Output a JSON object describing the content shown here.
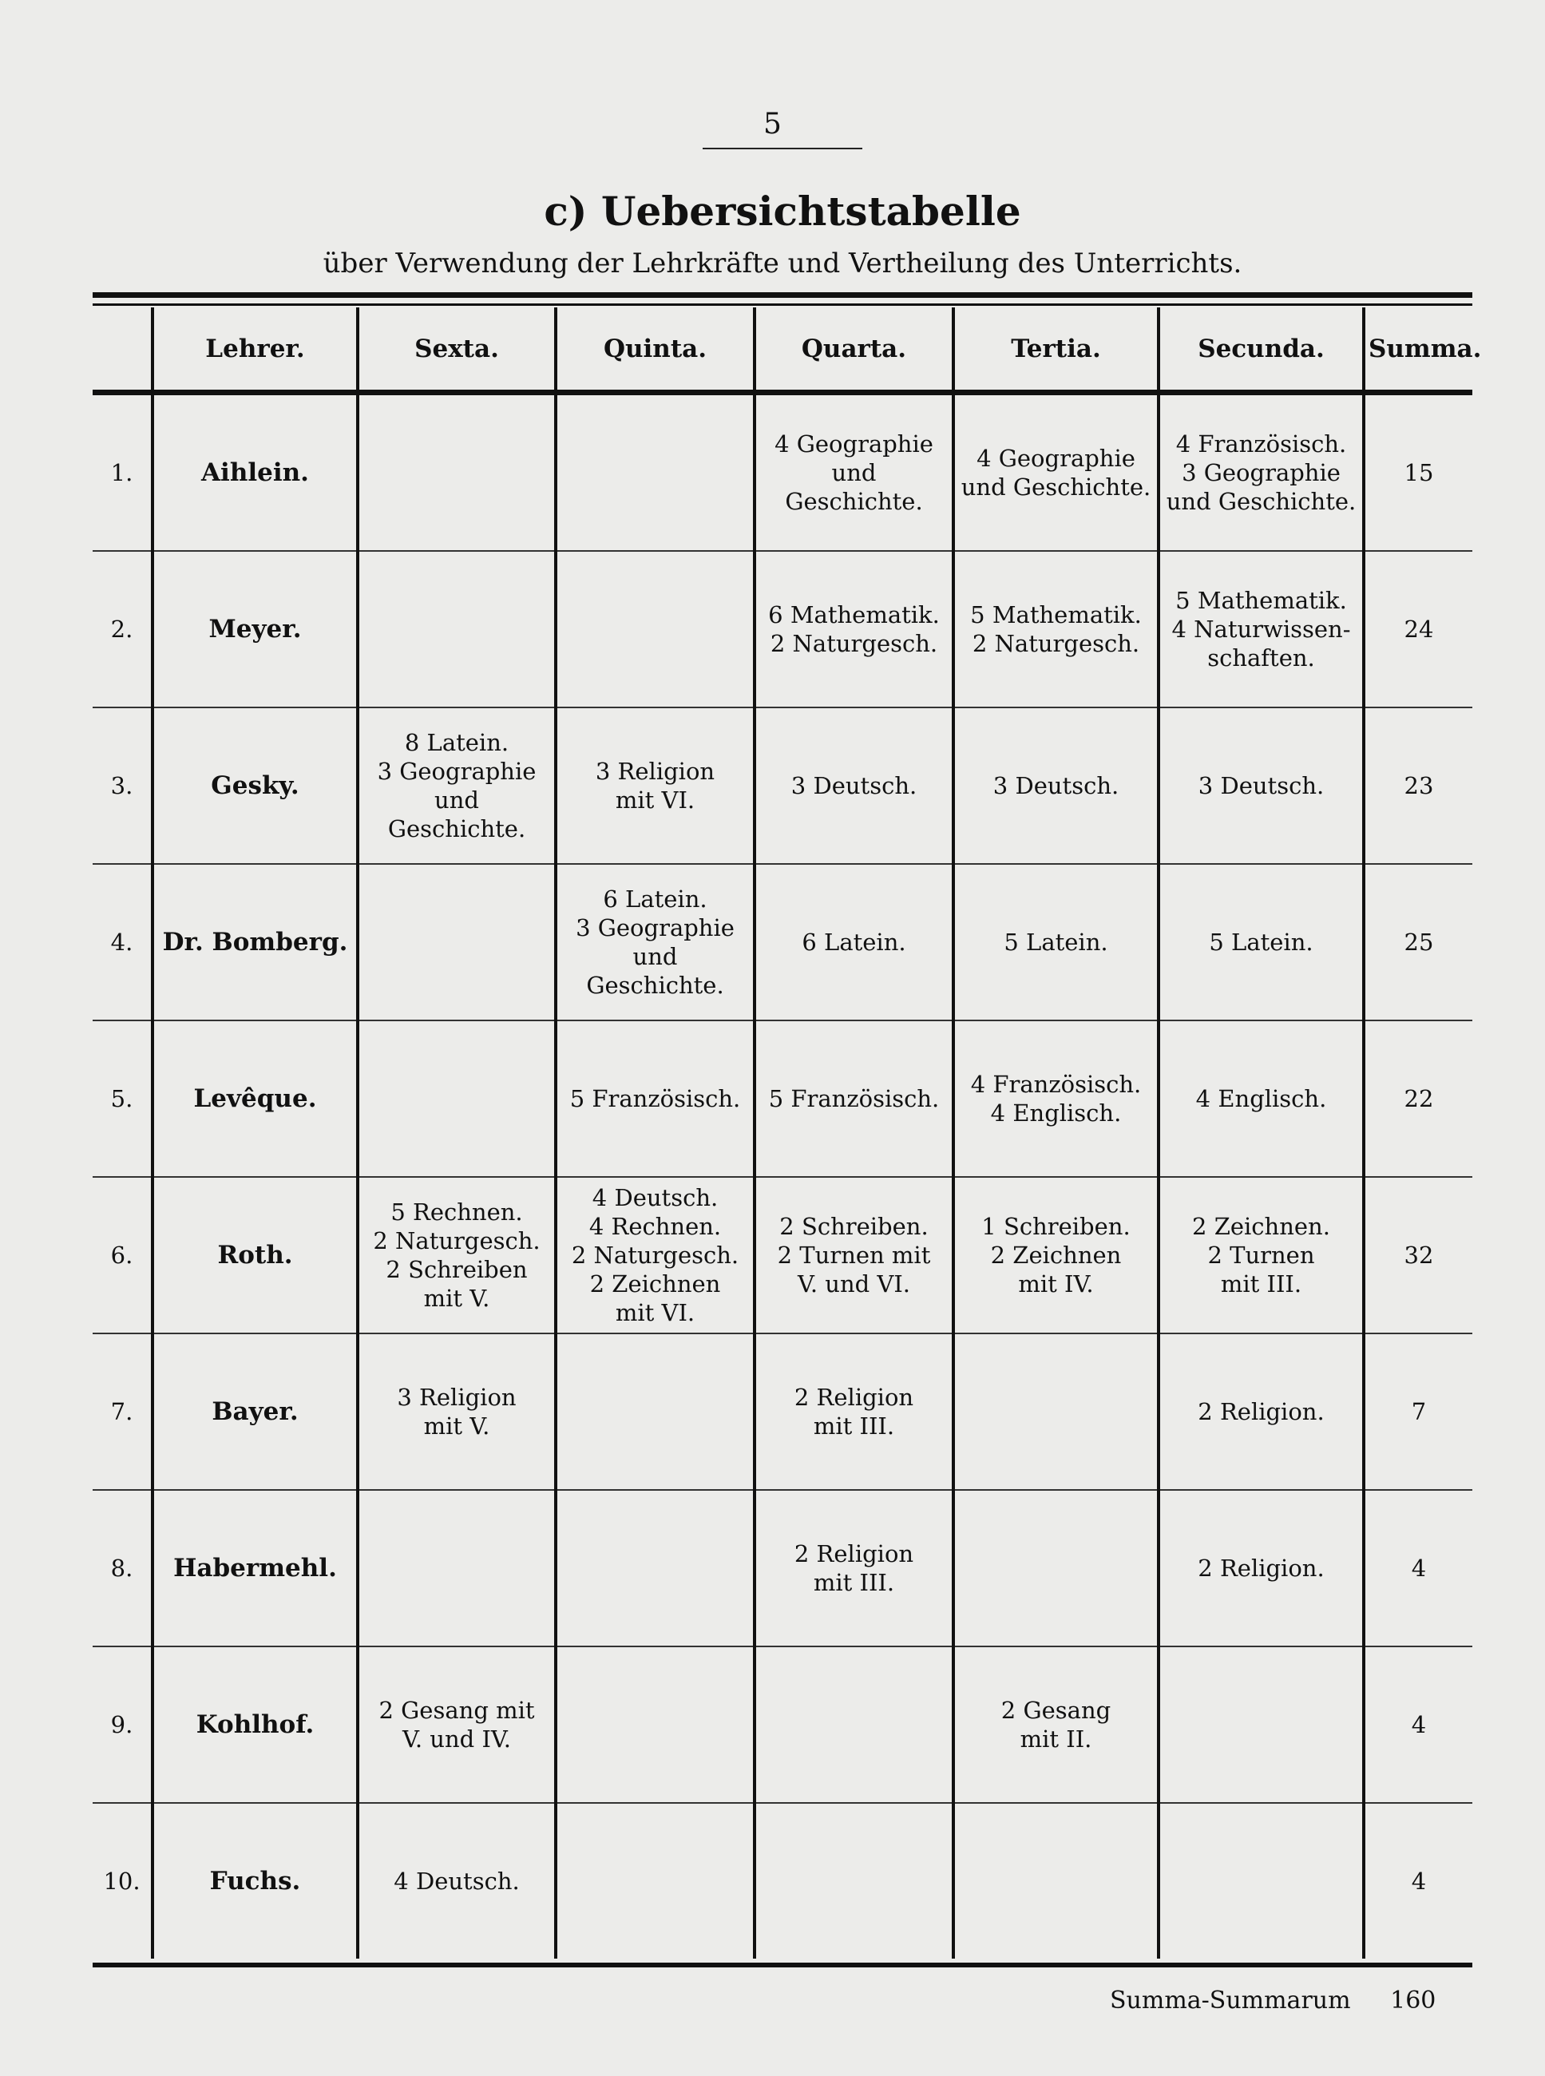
{
  "page_number": "5",
  "title": "c) Uebersichtstabelle",
  "subtitle": "über Verwendung der Lehrkräfte und Vertheilung des Unterrichts.",
  "table": {
    "headers": [
      "",
      "Lehrer.",
      "Sexta.",
      "Quinta.",
      "Quarta.",
      "Tertia.",
      "Secunda.",
      "Summa."
    ],
    "rows": [
      [
        "1.",
        "Aihlein.",
        "",
        "",
        "4 Geographie\nund Geschichte.",
        "4 Geographie\nund Geschichte.",
        "4 Französisch.\n3 Geographie\nund Geschichte.",
        "15"
      ],
      [
        "2.",
        "Meyer.",
        "",
        "",
        "6 Mathematik.\n2 Naturgesch.",
        "5 Mathematik.\n2 Naturgesch.",
        "5 Mathematik.\n4 Naturwissen-\nschaften.",
        "24"
      ],
      [
        "3.",
        "Gesky.",
        "8 Latein.\n3 Geographie\nund Geschichte.",
        "3 Religion\nmit VI.",
        "3 Deutsch.",
        "3 Deutsch.",
        "3 Deutsch.",
        "23"
      ],
      [
        "4.",
        "Dr. Bomberg.",
        "",
        "6 Latein.\n3 Geographie\nund Geschichte.",
        "6 Latein.",
        "5 Latein.",
        "5 Latein.",
        "25"
      ],
      [
        "5.",
        "Levêque.",
        "",
        "5 Französisch.",
        "5 Französisch.",
        "4 Französisch.\n4 Englisch.",
        "4 Englisch.",
        "22"
      ],
      [
        "6.",
        "Roth.",
        "5 Rechnen.\n2 Naturgesch.\n2 Schreiben\nmit V.",
        "4 Deutsch.\n4 Rechnen.\n2 Naturgesch.\n2 Zeichnen\nmit VI.",
        "2 Schreiben.\n2 Turnen mit\nV. und VI.",
        "1 Schreiben.\n2 Zeichnen\nmit IV.",
        "2 Zeichnen.\n2 Turnen\nmit III.",
        "32"
      ],
      [
        "7.",
        "Bayer.",
        "3 Religion\nmit V.",
        "",
        "2 Religion\nmit III.",
        "",
        "2 Religion.",
        "7"
      ],
      [
        "8.",
        "Habermehl.",
        "",
        "",
        "2 Religion\nmit III.",
        "",
        "2 Religion.",
        "4"
      ],
      [
        "9.",
        "Kohlhof.",
        "2 Gesang mit\nV. und IV.",
        "",
        "",
        "2 Gesang\nmit II.",
        "",
        "4"
      ],
      [
        "10.",
        "Fuchs.",
        "4 Deutsch.",
        "",
        "",
        "",
        "",
        "4"
      ]
    ]
  },
  "total": {
    "label": "Summa-Summarum",
    "value": "160"
  }
}
